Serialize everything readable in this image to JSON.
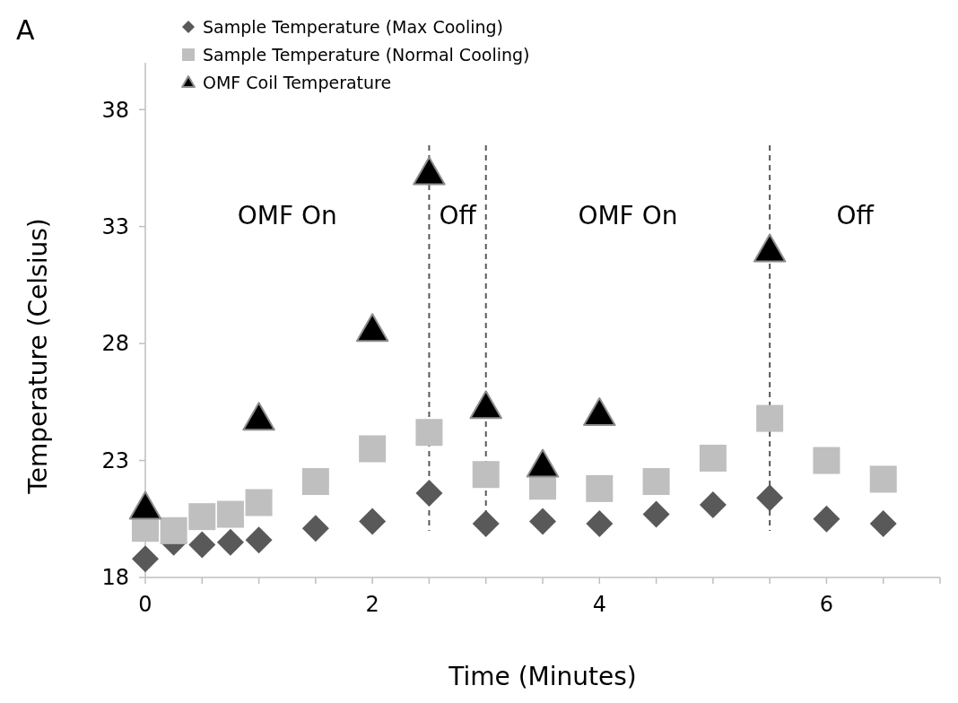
{
  "chart_data": {
    "type": "scatter",
    "xlabel": "Time (Minutes)",
    "ylabel": "Temperature (Celsius)",
    "xlim": [
      0,
      7
    ],
    "xticks": [
      0,
      {
        "value": 0.5,
        "label": null
      },
      {
        "value": 1,
        "label": null
      },
      {
        "value": 1.5,
        "label": null
      },
      2,
      {
        "value": 2.5,
        "label": null
      },
      {
        "value": 3,
        "label": null
      },
      {
        "value": 3.5,
        "label": null
      },
      4,
      {
        "value": 4.5,
        "label": null
      },
      {
        "value": 5,
        "label": null
      },
      {
        "value": 5.5,
        "label": null
      },
      6,
      {
        "value": 6.5,
        "label": null
      },
      {
        "value": 7,
        "label": null
      }
    ],
    "ylim": [
      18,
      40
    ],
    "yticks": [
      18,
      23,
      28,
      33,
      38
    ],
    "grid": false,
    "legend": "top left",
    "series": [
      {
        "name": "Sample Temperature (Max Cooling)",
        "color": "#595959",
        "marker": "diamond",
        "x": [
          0,
          0.25,
          0.5,
          0.75,
          1,
          1.5,
          2,
          2.5,
          3,
          3.5,
          4,
          4.5,
          5,
          5.5,
          6,
          6.5
        ],
        "values": [
          18.8,
          19.5,
          19.4,
          19.5,
          19.6,
          20.1,
          20.4,
          21.6,
          20.3,
          20.4,
          20.3,
          20.7,
          21.1,
          21.4,
          20.5,
          20.3
        ]
      },
      {
        "name": "Sample Temperature (Normal Cooling)",
        "color": "#bfbfbf",
        "marker": "square",
        "x": [
          0,
          0.25,
          0.5,
          0.75,
          1,
          1.5,
          2,
          2.5,
          3,
          3.5,
          4,
          4.5,
          5,
          5.5,
          6,
          6.5
        ],
        "values": [
          20.1,
          20.0,
          20.6,
          20.7,
          21.2,
          22.1,
          23.5,
          24.2,
          22.4,
          21.9,
          21.8,
          22.1,
          23.1,
          24.8,
          23.0,
          22.2
        ]
      },
      {
        "name": "OMF Coil Temperature",
        "color": "#000000",
        "marker": "triangle",
        "x": [
          0,
          1,
          2,
          2.5,
          3,
          3.5,
          4,
          5.5
        ],
        "values": [
          21.0,
          24.8,
          28.6,
          35.3,
          25.3,
          22.8,
          25.0,
          32.0
        ]
      }
    ],
    "ref_lines": [
      {
        "axis": "x",
        "value": 2.5,
        "color": "#595959",
        "line_style": "dashed"
      },
      {
        "axis": "x",
        "value": 3,
        "color": "#595959",
        "line_style": "dashed"
      },
      {
        "axis": "x",
        "value": 5.5,
        "color": "#595959",
        "line_style": "dashed"
      }
    ],
    "annotations": [
      "A",
      "OMF On",
      "Off",
      "OMF On",
      "Off"
    ]
  }
}
